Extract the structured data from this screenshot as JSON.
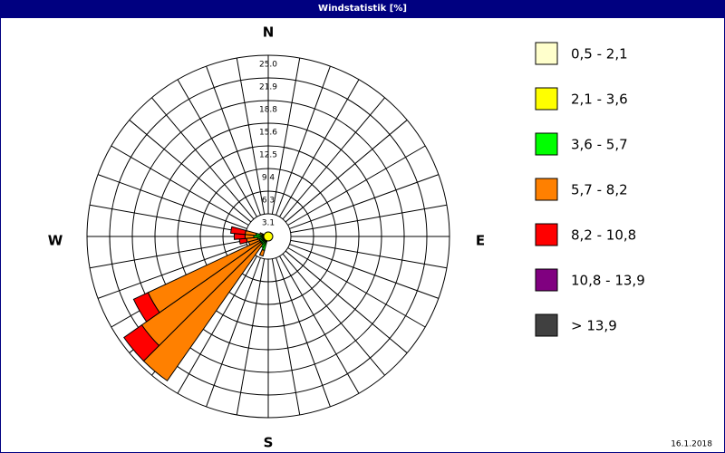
{
  "chart_data": {
    "type": "windrose",
    "title": "Windstatistik [%]",
    "date": "16.1.2018",
    "compass": {
      "n": "N",
      "e": "E",
      "s": "S",
      "w": "W"
    },
    "directions": [
      200,
      210,
      220,
      230,
      240,
      250,
      260,
      270,
      280,
      290
    ],
    "sector_width": 10,
    "ylim": [
      0,
      25
    ],
    "yticks": [
      {
        "value": 3.125,
        "label": "3.1"
      },
      {
        "value": 6.25,
        "label": "6.3"
      },
      {
        "value": 9.375,
        "label": "9.4"
      },
      12.5,
      {
        "value": 15.625,
        "label": "15.6"
      },
      {
        "value": 18.75,
        "label": "18.8"
      },
      {
        "value": 21.875,
        "label": "21.9"
      },
      {
        "value": 25,
        "label": "25.0"
      }
    ],
    "series": [
      {
        "name": "0,5 - 2,1",
        "color": "#ffffcc",
        "values": [
          0.2,
          0.2,
          0.2,
          0.2,
          0.2,
          0.2,
          0.2,
          0.2,
          0.2,
          0.2
        ]
      },
      {
        "name": "2,1 - 3,6",
        "color": "#ffff00",
        "values": [
          0.3,
          0.3,
          0.3,
          0.3,
          0.3,
          0.3,
          0.3,
          0.3,
          0.3,
          0.2
        ]
      },
      {
        "name": "3,6 - 5,7",
        "color": "#00ff00",
        "values": [
          1.5,
          1.2,
          0.8,
          0.8,
          0.8,
          0.8,
          1.0,
          1.5,
          1.2,
          0.5
        ]
      },
      {
        "name": "5,7 - 8,2",
        "color": "#ff8000",
        "values": [
          0.8,
          0,
          23.0,
          20.0,
          17.0,
          1.5,
          1.5,
          1.2,
          1.5,
          0.3
        ]
      },
      {
        "name": "8,2 - 10,8",
        "color": "#ff0000",
        "values": [
          0,
          0,
          0,
          3.0,
          2.2,
          0,
          1.0,
          1.5,
          2.0,
          0
        ]
      },
      {
        "name": "10,8 - 13,9",
        "color": "#800080",
        "values": [
          0,
          0,
          0,
          0,
          0,
          0,
          0,
          0,
          0,
          0
        ]
      },
      {
        "name": " > 13,9",
        "color": "#404040",
        "values": [
          0,
          0,
          0,
          0,
          0,
          0,
          0,
          0,
          0,
          0
        ]
      }
    ]
  }
}
